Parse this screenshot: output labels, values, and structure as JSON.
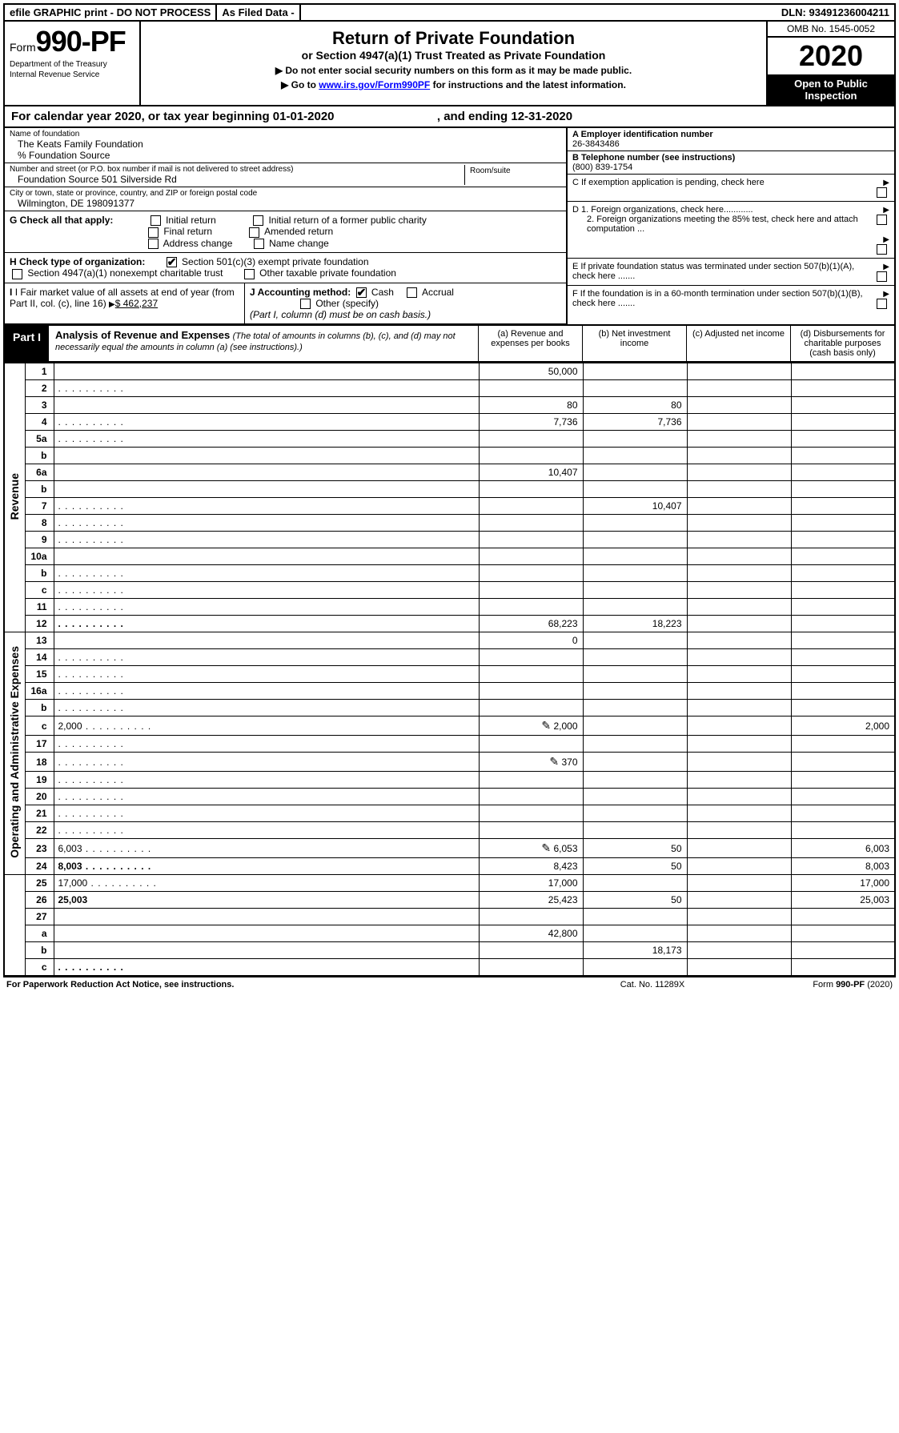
{
  "topbar": {
    "efile": "efile GRAPHIC print - DO NOT PROCESS",
    "asfiled": "As Filed Data -",
    "dln": "DLN: 93491236004211"
  },
  "header": {
    "form_prefix": "Form",
    "form_no": "990-PF",
    "dept1": "Department of the Treasury",
    "dept2": "Internal Revenue Service",
    "title": "Return of Private Foundation",
    "subtitle": "or Section 4947(a)(1) Trust Treated as Private Foundation",
    "note1": "▶ Do not enter social security numbers on this form as it may be made public.",
    "note2_pre": "▶ Go to ",
    "note2_link": "www.irs.gov/Form990PF",
    "note2_post": " for instructions and the latest information.",
    "omb": "OMB No. 1545-0052",
    "year": "2020",
    "inspect": "Open to Public Inspection"
  },
  "calyear": {
    "text_a": "For calendar year 2020, or tax year beginning 01-01-2020",
    "text_b": ", and ending 12-31-2020"
  },
  "info": {
    "name_label": "Name of foundation",
    "name": "The Keats Family Foundation",
    "care_label": "% Foundation Source",
    "addr_label": "Number and street (or P.O. box number if mail is not delivered to street address)",
    "addr": "Foundation Source 501 Silverside Rd",
    "room_label": "Room/suite",
    "city_label": "City or town, state or province, country, and ZIP or foreign postal code",
    "city": "Wilmington, DE 198091377",
    "A_label": "A Employer identification number",
    "A_val": "26-3843486",
    "B_label": "B Telephone number (see instructions)",
    "B_val": "(800) 839-1754",
    "C_label": "C If exemption application is pending, check here",
    "D1": "D 1. Foreign organizations, check here............",
    "D2": "2. Foreign organizations meeting the 85% test, check here and attach computation ...",
    "E": "E If private foundation status was terminated under section 507(b)(1)(A), check here .......",
    "F": "F If the foundation is in a 60-month termination under section 507(b)(1)(B), check here .......",
    "G_label": "G Check all that apply:",
    "G_opts": [
      "Initial return",
      "Initial return of a former public charity",
      "Final return",
      "Amended return",
      "Address change",
      "Name change"
    ],
    "H_label": "H Check type of organization:",
    "H1": "Section 501(c)(3) exempt private foundation",
    "H2": "Section 4947(a)(1) nonexempt charitable trust",
    "H3": "Other taxable private foundation",
    "I_label": "I Fair market value of all assets at end of year (from Part II, col. (c), line 16)",
    "I_val": "$ 462,237",
    "J_label": "J Accounting method:",
    "J_cash": "Cash",
    "J_accrual": "Accrual",
    "J_other": "Other (specify)",
    "J_note": "(Part I, column (d) must be on cash basis.)"
  },
  "part1": {
    "label": "Part I",
    "title": "Analysis of Revenue and Expenses",
    "sub": " (The total of amounts in columns (b), (c), and (d) may not necessarily equal the amounts in column (a) (see instructions).)",
    "cols": {
      "a": "(a) Revenue and expenses per books",
      "b": "(b) Net investment income",
      "c": "(c) Adjusted net income",
      "d": "(d) Disbursements for charitable purposes (cash basis only)"
    }
  },
  "sides": {
    "rev": "Revenue",
    "exp": "Operating and Administrative Expenses"
  },
  "rows": [
    {
      "n": "1",
      "d": "",
      "a": "50,000",
      "b": "",
      "c": ""
    },
    {
      "n": "2",
      "d": "",
      "dots": true,
      "a": "",
      "b": "",
      "c": ""
    },
    {
      "n": "3",
      "d": "",
      "a": "80",
      "b": "80",
      "c": ""
    },
    {
      "n": "4",
      "d": "",
      "dots": true,
      "a": "7,736",
      "b": "7,736",
      "c": ""
    },
    {
      "n": "5a",
      "d": "",
      "dots": true,
      "a": "",
      "b": "",
      "c": ""
    },
    {
      "n": "b",
      "d": "",
      "a": "",
      "b": "",
      "c": ""
    },
    {
      "n": "6a",
      "d": "",
      "a": "10,407",
      "b": "",
      "c": ""
    },
    {
      "n": "b",
      "d": "",
      "a": "",
      "b": "",
      "c": ""
    },
    {
      "n": "7",
      "d": "",
      "dots": true,
      "a": "",
      "b": "10,407",
      "c": ""
    },
    {
      "n": "8",
      "d": "",
      "dots": true,
      "a": "",
      "b": "",
      "c": ""
    },
    {
      "n": "9",
      "d": "",
      "dots": true,
      "a": "",
      "b": "",
      "c": ""
    },
    {
      "n": "10a",
      "d": "",
      "a": "",
      "b": "",
      "c": ""
    },
    {
      "n": "b",
      "d": "",
      "dots": true,
      "a": "",
      "b": "",
      "c": ""
    },
    {
      "n": "c",
      "d": "",
      "dots": true,
      "a": "",
      "b": "",
      "c": ""
    },
    {
      "n": "11",
      "d": "",
      "dots": true,
      "a": "",
      "b": "",
      "c": ""
    },
    {
      "n": "12",
      "d": "",
      "dots": true,
      "bold": true,
      "a": "68,223",
      "b": "18,223",
      "c": ""
    },
    {
      "n": "13",
      "d": "",
      "a": "0",
      "b": "",
      "c": ""
    },
    {
      "n": "14",
      "d": "",
      "dots": true,
      "a": "",
      "b": "",
      "c": ""
    },
    {
      "n": "15",
      "d": "",
      "dots": true,
      "a": "",
      "b": "",
      "c": ""
    },
    {
      "n": "16a",
      "d": "",
      "dots": true,
      "a": "",
      "b": "",
      "c": ""
    },
    {
      "n": "b",
      "d": "",
      "dots": true,
      "a": "",
      "b": "",
      "c": ""
    },
    {
      "n": "c",
      "d": "2,000",
      "dots": true,
      "icon": true,
      "a": "2,000",
      "b": "",
      "c": ""
    },
    {
      "n": "17",
      "d": "",
      "dots": true,
      "a": "",
      "b": "",
      "c": ""
    },
    {
      "n": "18",
      "d": "",
      "dots": true,
      "icon": true,
      "a": "370",
      "b": "",
      "c": ""
    },
    {
      "n": "19",
      "d": "",
      "dots": true,
      "a": "",
      "b": "",
      "c": ""
    },
    {
      "n": "20",
      "d": "",
      "dots": true,
      "a": "",
      "b": "",
      "c": ""
    },
    {
      "n": "21",
      "d": "",
      "dots": true,
      "a": "",
      "b": "",
      "c": ""
    },
    {
      "n": "22",
      "d": "",
      "dots": true,
      "a": "",
      "b": "",
      "c": ""
    },
    {
      "n": "23",
      "d": "6,003",
      "dots": true,
      "icon": true,
      "a": "6,053",
      "b": "50",
      "c": ""
    },
    {
      "n": "24",
      "d": "8,003",
      "dots": true,
      "bold": true,
      "a": "8,423",
      "b": "50",
      "c": ""
    },
    {
      "n": "25",
      "d": "17,000",
      "dots": true,
      "a": "17,000",
      "b": "",
      "c": ""
    },
    {
      "n": "26",
      "d": "25,003",
      "bold": true,
      "a": "25,423",
      "b": "50",
      "c": ""
    },
    {
      "n": "27",
      "d": "",
      "a": "",
      "b": "",
      "c": ""
    },
    {
      "n": "a",
      "d": "",
      "bold": true,
      "a": "42,800",
      "b": "",
      "c": ""
    },
    {
      "n": "b",
      "d": "",
      "bold": true,
      "a": "",
      "b": "18,173",
      "c": ""
    },
    {
      "n": "c",
      "d": "",
      "dots": true,
      "bold": true,
      "a": "",
      "b": "",
      "c": ""
    }
  ],
  "footer": {
    "left": "For Paperwork Reduction Act Notice, see instructions.",
    "mid": "Cat. No. 11289X",
    "right": "Form 990-PF (2020)"
  }
}
